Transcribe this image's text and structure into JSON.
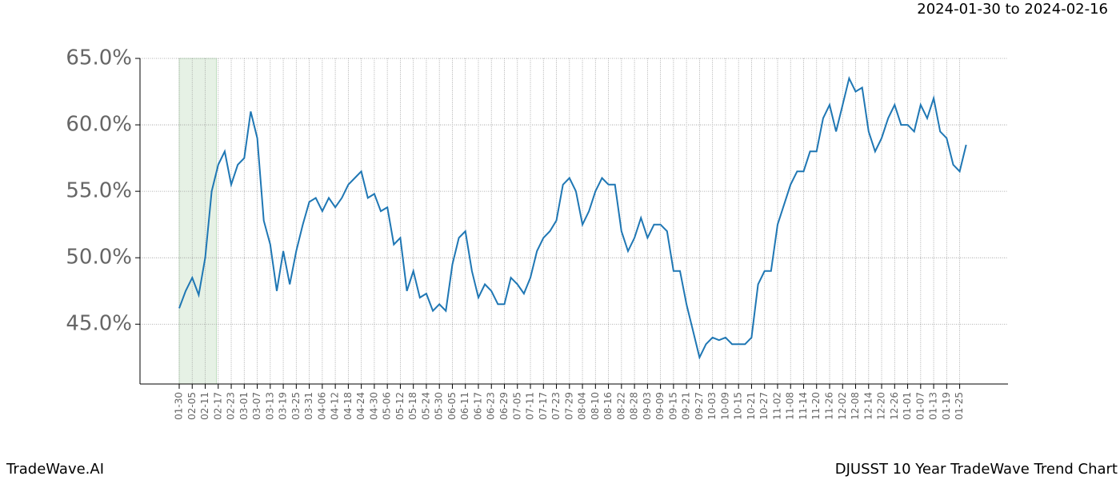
{
  "chart_data": {
    "type": "line",
    "title": "2024-01-30 to 2024-02-16",
    "source": "TradeWave.AI",
    "caption": "DJUSST 10 Year TradeWave Trend Chart",
    "categories": [
      "01-30",
      null,
      "02-05",
      null,
      "02-11",
      null,
      "02-17",
      null,
      "02-23",
      null,
      "03-01",
      null,
      "03-07",
      null,
      "03-13",
      null,
      "03-19",
      null,
      "03-25",
      null,
      "03-31",
      null,
      "04-06",
      null,
      "04-12",
      null,
      "04-18",
      null,
      "04-24",
      null,
      "04-30",
      null,
      "05-06",
      null,
      "05-12",
      null,
      "05-18",
      null,
      "05-24",
      null,
      "05-30",
      null,
      "06-05",
      null,
      "06-11",
      null,
      "06-17",
      null,
      "06-23",
      null,
      "06-29",
      null,
      "07-05",
      null,
      "07-11",
      null,
      "07-17",
      null,
      "07-23",
      null,
      "07-29",
      null,
      "08-04",
      null,
      "08-10",
      null,
      "08-16",
      null,
      "08-22",
      null,
      "08-28",
      null,
      "09-03",
      null,
      "09-09",
      null,
      "09-15",
      null,
      "09-21",
      null,
      "09-27",
      null,
      "10-03",
      null,
      "10-09",
      null,
      "10-15",
      null,
      "10-21",
      null,
      "10-27",
      null,
      "11-02",
      null,
      "11-08",
      null,
      "11-14",
      null,
      "11-20",
      null,
      "11-26",
      null,
      "12-02",
      null,
      "12-08",
      null,
      "12-14",
      null,
      "12-20",
      null,
      "12-26",
      null,
      "01-01",
      null,
      "01-07",
      null,
      "01-13",
      null,
      "01-19",
      null,
      "01-25",
      null
    ],
    "series": [
      {
        "name": "DJUSST",
        "color": "#1f77b4",
        "values": [
          46.2,
          47.5,
          48.5,
          47.2,
          50.0,
          55.0,
          57.0,
          58.0,
          55.5,
          57.0,
          57.5,
          61.0,
          59.0,
          52.8,
          51.0,
          47.5,
          50.5,
          48.0,
          50.5,
          52.5,
          54.2,
          54.5,
          53.5,
          54.5,
          53.8,
          54.5,
          55.5,
          56.0,
          56.5,
          54.5,
          54.8,
          53.5,
          53.8,
          51.0,
          51.5,
          47.5,
          49.0,
          47.0,
          47.3,
          46.0,
          46.5,
          46.0,
          49.5,
          51.5,
          52.0,
          49.0,
          47.0,
          48.0,
          47.5,
          46.5,
          46.5,
          48.5,
          48.0,
          47.3,
          48.5,
          50.5,
          51.5,
          52.0,
          52.8,
          55.5,
          56.0,
          55.0,
          52.5,
          53.5,
          55.0,
          56.0,
          55.5,
          55.5,
          52.0,
          50.5,
          51.5,
          53.0,
          51.5,
          52.5,
          52.5,
          52.0,
          49.0,
          49.0,
          46.5,
          44.5,
          42.5,
          43.5,
          44.0,
          43.8,
          44.0,
          43.5,
          43.5,
          43.5,
          44.0,
          48.0,
          49.0,
          49.0,
          52.5,
          54.0,
          55.5,
          56.5,
          56.5,
          58.0,
          58.0,
          60.5,
          61.5,
          59.5,
          61.5,
          63.5,
          62.5,
          62.8,
          59.5,
          58.0,
          59.0,
          60.5,
          61.5,
          60.0,
          60.0,
          59.5,
          61.5,
          60.5,
          62.0,
          59.5,
          59.0,
          57.0,
          56.5,
          58.5
        ]
      }
    ],
    "ylim": [
      40.5,
      65
    ],
    "yticks": [
      {
        "value": 45,
        "label": "45.0%"
      },
      {
        "value": 50,
        "label": "50.0%"
      },
      {
        "value": 55,
        "label": "55.0%"
      },
      {
        "value": 60,
        "label": "60.0%"
      },
      {
        "value": 65,
        "label": "65.0%"
      }
    ],
    "grid": true
  }
}
